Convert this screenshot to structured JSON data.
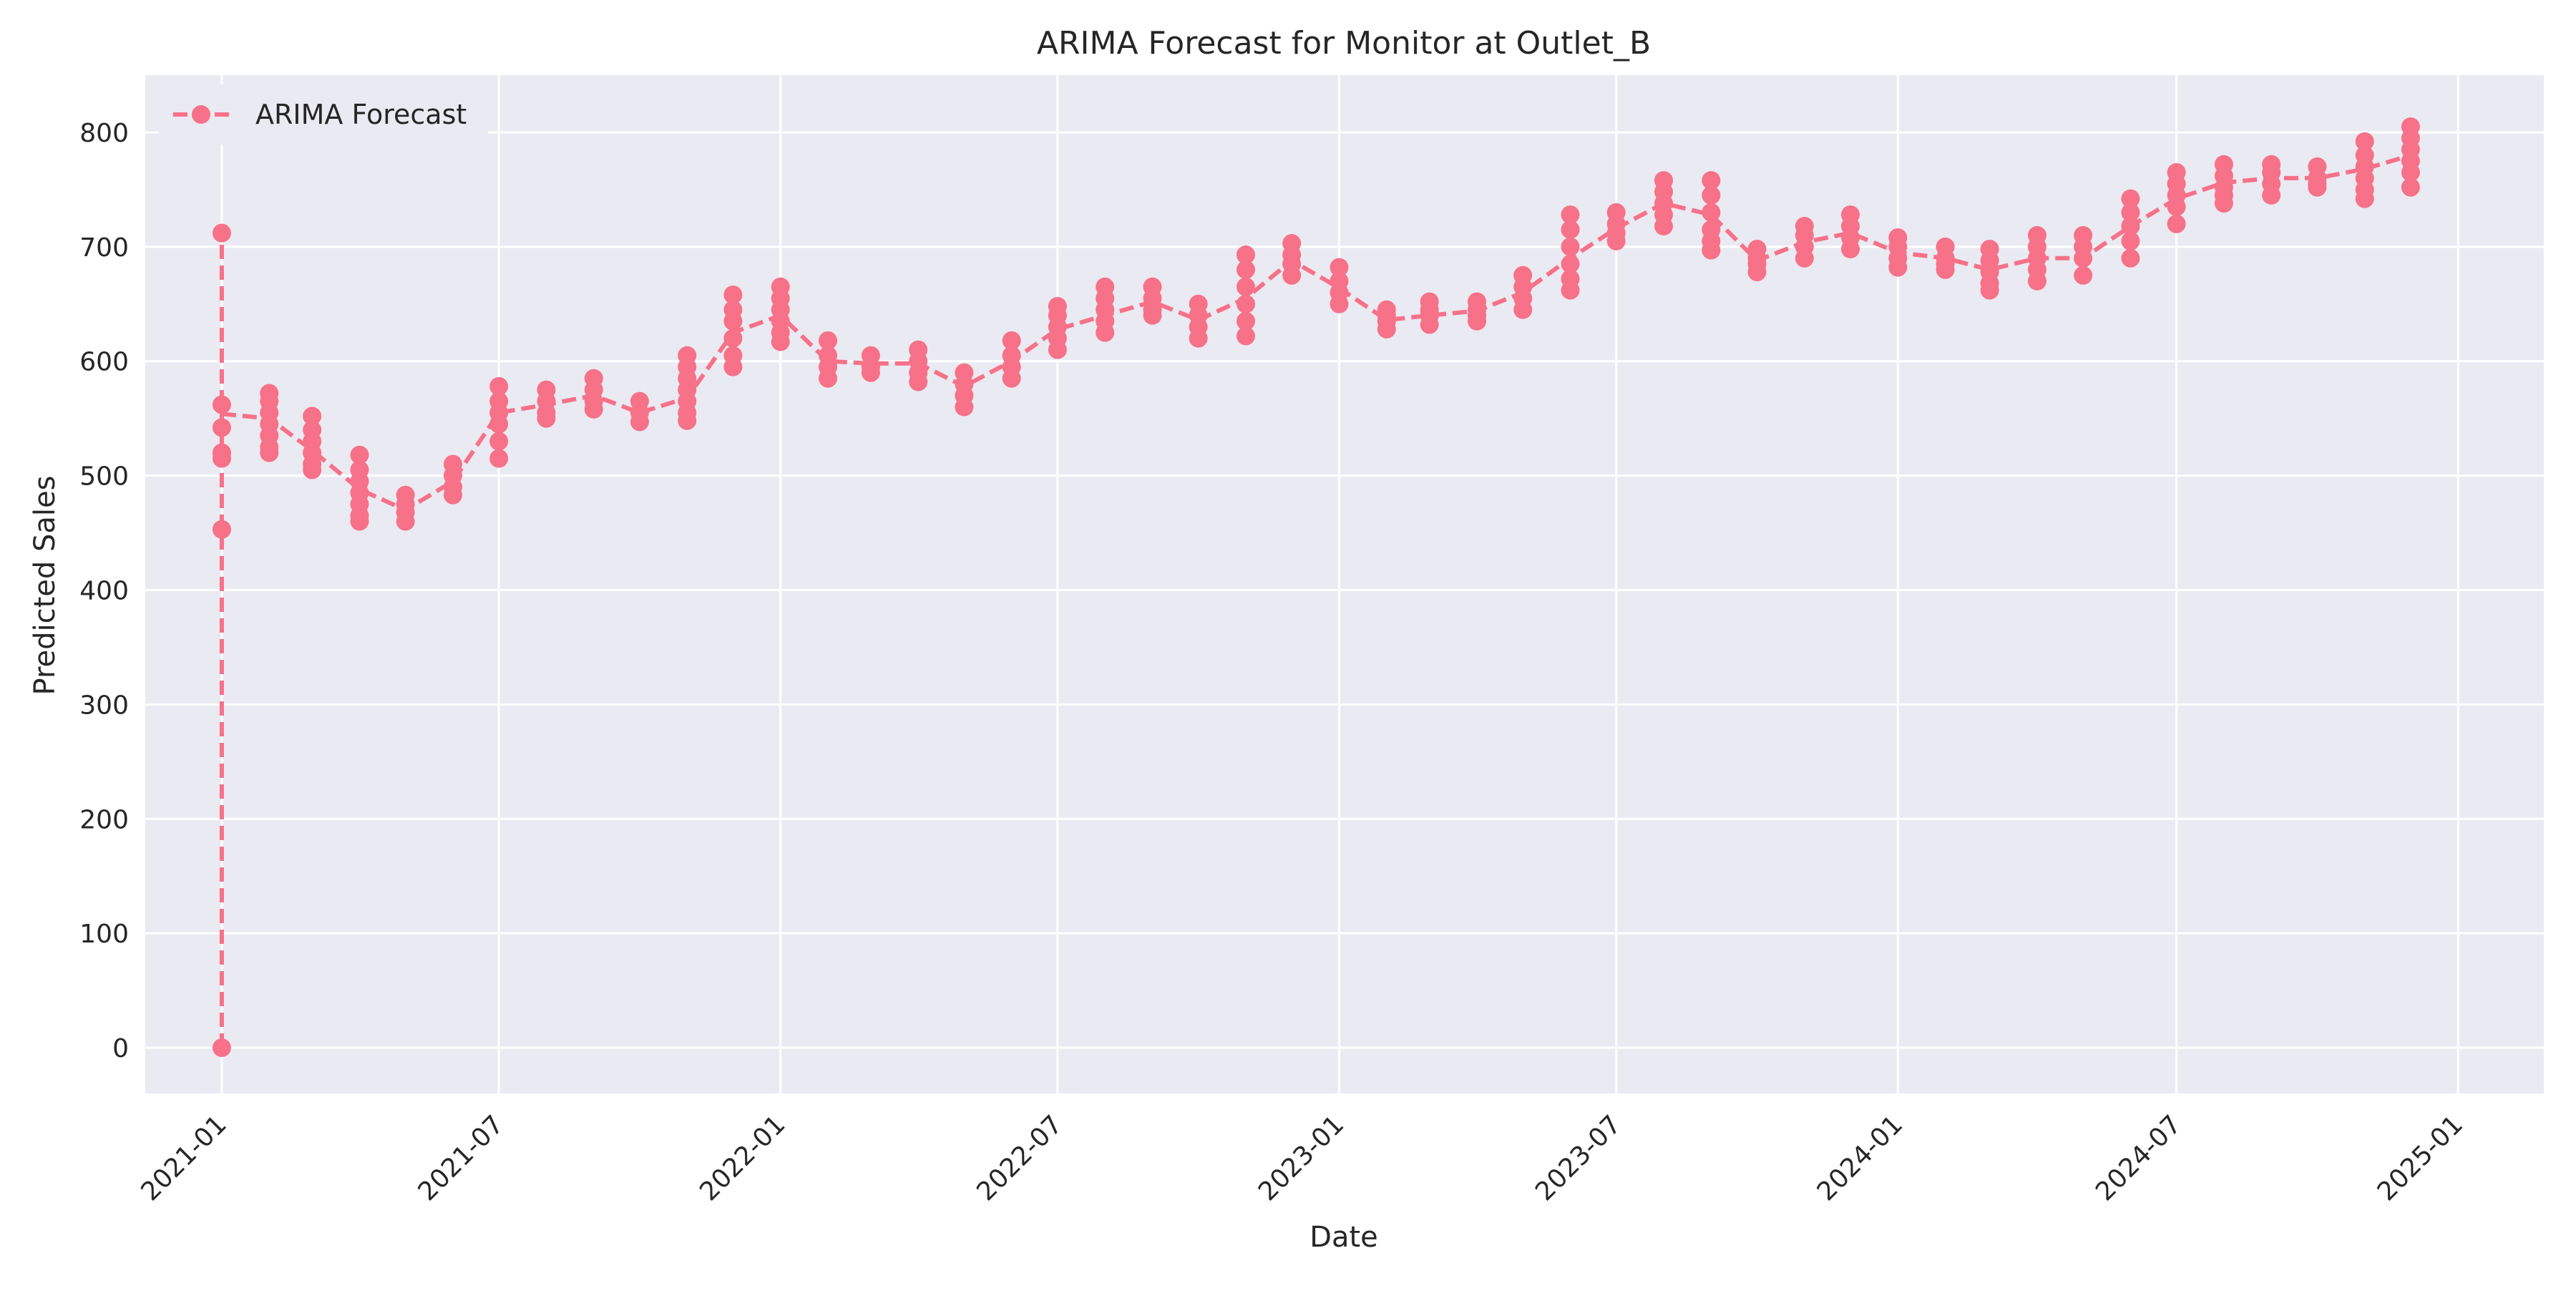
{
  "chart_data": {
    "type": "line",
    "title": "ARIMA Forecast for Monitor at Outlet_B",
    "xlabel": "Date",
    "ylabel": "Predicted Sales",
    "x_ticks": [
      "2021-01",
      "2021-07",
      "2022-01",
      "2022-07",
      "2023-01",
      "2023-07",
      "2024-01",
      "2024-07",
      "2025-01"
    ],
    "y_ticks": [
      0,
      100,
      200,
      300,
      400,
      500,
      600,
      700,
      800
    ],
    "xlim": [
      "2020-11-12",
      "2025-02-26"
    ],
    "ylim": [
      -40,
      850
    ],
    "grid": true,
    "legend_position": "top-left",
    "colors": {
      "series": "#f77189",
      "background": "#eaeaf2",
      "grid": "#ffffff"
    },
    "series": [
      {
        "name": "ARIMA Forecast",
        "line_style": "dashed",
        "marker": "circle",
        "groups": [
          {
            "date": "2021-01-01",
            "values": [
              0,
              712,
              562,
              542,
              520,
              515,
              453
            ],
            "mean": 554
          },
          {
            "date": "2021-02-01",
            "values": [
              572,
              565,
              555,
              545,
              535,
              525,
              520
            ],
            "mean": 550
          },
          {
            "date": "2021-03-01",
            "values": [
              552,
              540,
              530,
              520,
              510,
              505
            ],
            "mean": 522
          },
          {
            "date": "2021-04-01",
            "values": [
              518,
              505,
              495,
              485,
              475,
              465,
              460
            ],
            "mean": 488
          },
          {
            "date": "2021-05-01",
            "values": [
              483,
              475,
              468,
              460
            ],
            "mean": 470
          },
          {
            "date": "2021-06-01",
            "values": [
              510,
              500,
              490,
              483
            ],
            "mean": 495
          },
          {
            "date": "2021-07-01",
            "values": [
              578,
              565,
              555,
              545,
              530,
              515
            ],
            "mean": 555
          },
          {
            "date": "2021-08-01",
            "values": [
              575,
              565,
              555,
              550
            ],
            "mean": 562
          },
          {
            "date": "2021-09-01",
            "values": [
              585,
              575,
              565,
              558
            ],
            "mean": 570
          },
          {
            "date": "2021-10-01",
            "values": [
              565,
              555,
              547
            ],
            "mean": 555
          },
          {
            "date": "2021-11-01",
            "values": [
              605,
              595,
              585,
              575,
              565,
              555,
              548
            ],
            "mean": 568
          },
          {
            "date": "2021-12-01",
            "values": [
              658,
              645,
              635,
              620,
              605,
              595
            ],
            "mean": 625
          },
          {
            "date": "2022-01-01",
            "values": [
              665,
              655,
              645,
              635,
              625,
              617
            ],
            "mean": 640
          },
          {
            "date": "2022-02-01",
            "values": [
              618,
              605,
              595,
              585
            ],
            "mean": 600
          },
          {
            "date": "2022-03-01",
            "values": [
              605,
              595,
              590
            ],
            "mean": 598
          },
          {
            "date": "2022-04-01",
            "values": [
              610,
              600,
              590,
              582
            ],
            "mean": 598
          },
          {
            "date": "2022-05-01",
            "values": [
              590,
              580,
              570,
              560
            ],
            "mean": 578
          },
          {
            "date": "2022-06-01",
            "values": [
              618,
              605,
              595,
              585
            ],
            "mean": 600
          },
          {
            "date": "2022-07-01",
            "values": [
              648,
              640,
              630,
              620,
              610
            ],
            "mean": 628
          },
          {
            "date": "2022-08-01",
            "values": [
              665,
              655,
              645,
              635,
              625
            ],
            "mean": 640
          },
          {
            "date": "2022-09-01",
            "values": [
              665,
              655,
              645,
              640
            ],
            "mean": 652
          },
          {
            "date": "2022-10-01",
            "values": [
              650,
              640,
              630,
              620
            ],
            "mean": 636
          },
          {
            "date": "2022-11-01",
            "values": [
              693,
              680,
              665,
              650,
              635,
              622
            ],
            "mean": 655
          },
          {
            "date": "2022-12-01",
            "values": [
              703,
              693,
              685,
              675
            ],
            "mean": 688
          },
          {
            "date": "2023-01-01",
            "values": [
              682,
              670,
              660,
              650
            ],
            "mean": 664
          },
          {
            "date": "2023-02-01",
            "values": [
              645,
              640,
              635,
              628
            ],
            "mean": 636
          },
          {
            "date": "2023-03-01",
            "values": [
              652,
              645,
              640,
              632
            ],
            "mean": 640
          },
          {
            "date": "2023-04-01",
            "values": [
              652,
              645,
              640,
              635
            ],
            "mean": 644
          },
          {
            "date": "2023-05-01",
            "values": [
              675,
              665,
              655,
              645
            ],
            "mean": 660
          },
          {
            "date": "2023-06-01",
            "values": [
              728,
              715,
              700,
              685,
              672,
              662
            ],
            "mean": 690
          },
          {
            "date": "2023-07-01",
            "values": [
              730,
              720,
              712,
              705
            ],
            "mean": 716
          },
          {
            "date": "2023-08-01",
            "values": [
              758,
              748,
              738,
              728,
              718
            ],
            "mean": 738
          },
          {
            "date": "2023-09-01",
            "values": [
              758,
              745,
              730,
              715,
              705,
              697
            ],
            "mean": 728
          },
          {
            "date": "2023-10-01",
            "values": [
              698,
              690,
              685,
              678
            ],
            "mean": 688
          },
          {
            "date": "2023-11-01",
            "values": [
              718,
              710,
              700,
              690
            ],
            "mean": 704
          },
          {
            "date": "2023-12-01",
            "values": [
              728,
              718,
              708,
              698
            ],
            "mean": 712
          },
          {
            "date": "2024-01-01",
            "values": [
              708,
              700,
              690,
              682
            ],
            "mean": 695
          },
          {
            "date": "2024-02-01",
            "values": [
              700,
              690,
              685,
              680
            ],
            "mean": 690
          },
          {
            "date": "2024-03-01",
            "values": [
              698,
              688,
              678,
              668,
              662
            ],
            "mean": 680
          },
          {
            "date": "2024-04-01",
            "values": [
              710,
              700,
              690,
              680,
              670
            ],
            "mean": 690
          },
          {
            "date": "2024-05-01",
            "values": [
              710,
              700,
              690,
              675
            ],
            "mean": 690
          },
          {
            "date": "2024-06-01",
            "values": [
              742,
              730,
              718,
              705,
              690
            ],
            "mean": 718
          },
          {
            "date": "2024-07-01",
            "values": [
              765,
              755,
              745,
              735,
              720
            ],
            "mean": 742
          },
          {
            "date": "2024-08-01",
            "values": [
              772,
              762,
              752,
              745,
              738
            ],
            "mean": 756
          },
          {
            "date": "2024-09-01",
            "values": [
              772,
              765,
              755,
              745
            ],
            "mean": 760
          },
          {
            "date": "2024-10-01",
            "values": [
              770,
              760,
              755,
              752
            ],
            "mean": 760
          },
          {
            "date": "2024-11-01",
            "values": [
              792,
              780,
              770,
              760,
              750,
              742
            ],
            "mean": 768
          },
          {
            "date": "2024-12-01",
            "values": [
              805,
              795,
              785,
              775,
              765,
              752
            ],
            "mean": 780
          }
        ]
      }
    ]
  }
}
